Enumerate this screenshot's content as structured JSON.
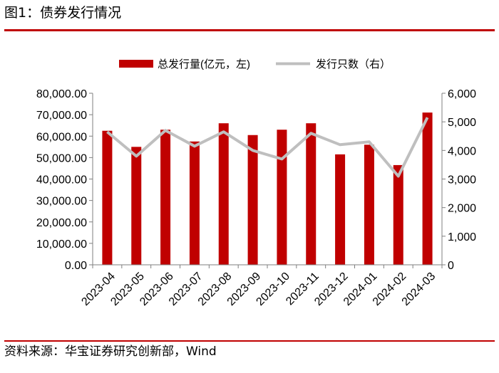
{
  "header": {
    "title": "图1：债券发行情况"
  },
  "footer": {
    "source": "资料来源：华宝证券研究创新部，Wind"
  },
  "colors": {
    "bar": "#c00000",
    "line": "#bfbfbf",
    "rule": "#c00000",
    "axis": "#7f7f7f"
  },
  "chart_data": {
    "type": "bar+line",
    "categories": [
      "2023-04",
      "2023-05",
      "2023-06",
      "2023-07",
      "2023-08",
      "2023-09",
      "2023-10",
      "2023-11",
      "2023-12",
      "2024-01",
      "2024-02",
      "2024-03"
    ],
    "series": [
      {
        "name": "总发行量(亿元，左)",
        "type": "bar",
        "axis": "left",
        "values": [
          62500,
          55000,
          63000,
          57500,
          66000,
          60500,
          63000,
          66000,
          51500,
          56000,
          46500,
          71000
        ]
      },
      {
        "name": "发行只数（右）",
        "type": "line",
        "axis": "right",
        "values": [
          4650,
          3800,
          4700,
          4150,
          4650,
          4000,
          3700,
          4600,
          4200,
          4300,
          3100,
          5150
        ]
      }
    ],
    "yleft": {
      "lim": [
        0,
        80000
      ],
      "ticks": [
        "0.00",
        "10,000.00",
        "20,000.00",
        "30,000.00",
        "40,000.00",
        "50,000.00",
        "60,000.00",
        "70,000.00",
        "80,000.00"
      ]
    },
    "yright": {
      "lim": [
        0,
        6000
      ],
      "ticks": [
        "0",
        "1,000",
        "2,000",
        "3,000",
        "4,000",
        "5,000",
        "6,000"
      ]
    },
    "legend": "top-center",
    "grid": false
  }
}
